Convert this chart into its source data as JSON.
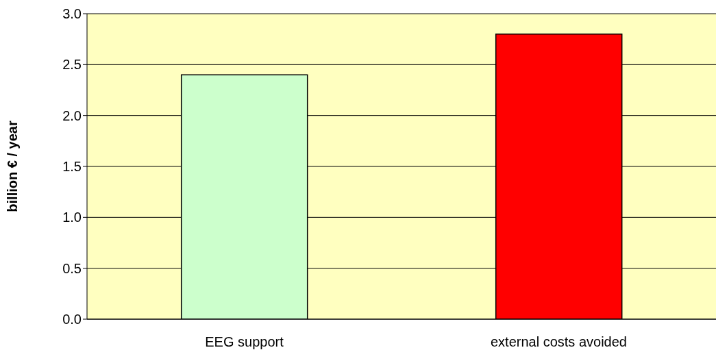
{
  "chart_data": {
    "type": "bar",
    "ylabel": "billion € / year",
    "categories": [
      "EEG support",
      "external costs avoided"
    ],
    "values": [
      2.4,
      2.8
    ],
    "colors": [
      "#ccffcc",
      "#ff0000"
    ],
    "ylim": [
      0,
      3
    ],
    "yticks": [
      {
        "value": 0,
        "label": "0.0"
      },
      {
        "value": 0.5,
        "label": "0.5"
      },
      {
        "value": 1,
        "label": "1.0"
      },
      {
        "value": 1.5,
        "label": "1.5"
      },
      {
        "value": 2,
        "label": "2.0"
      },
      {
        "value": 2.5,
        "label": "2.5"
      },
      {
        "value": 3,
        "label": "3.0"
      }
    ],
    "grid": "y"
  }
}
